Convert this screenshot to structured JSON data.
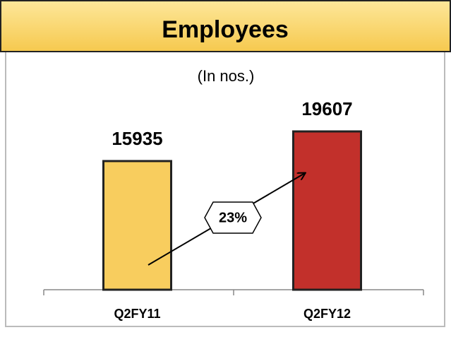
{
  "chart_data": {
    "type": "bar",
    "title": "Employees",
    "subtitle": "(In nos.)",
    "categories": [
      "Q2FY11",
      "Q2FY12"
    ],
    "values": [
      15935,
      19607
    ],
    "colors": [
      "#f8cd5e",
      "#c2302b"
    ],
    "annotation": "23%"
  }
}
